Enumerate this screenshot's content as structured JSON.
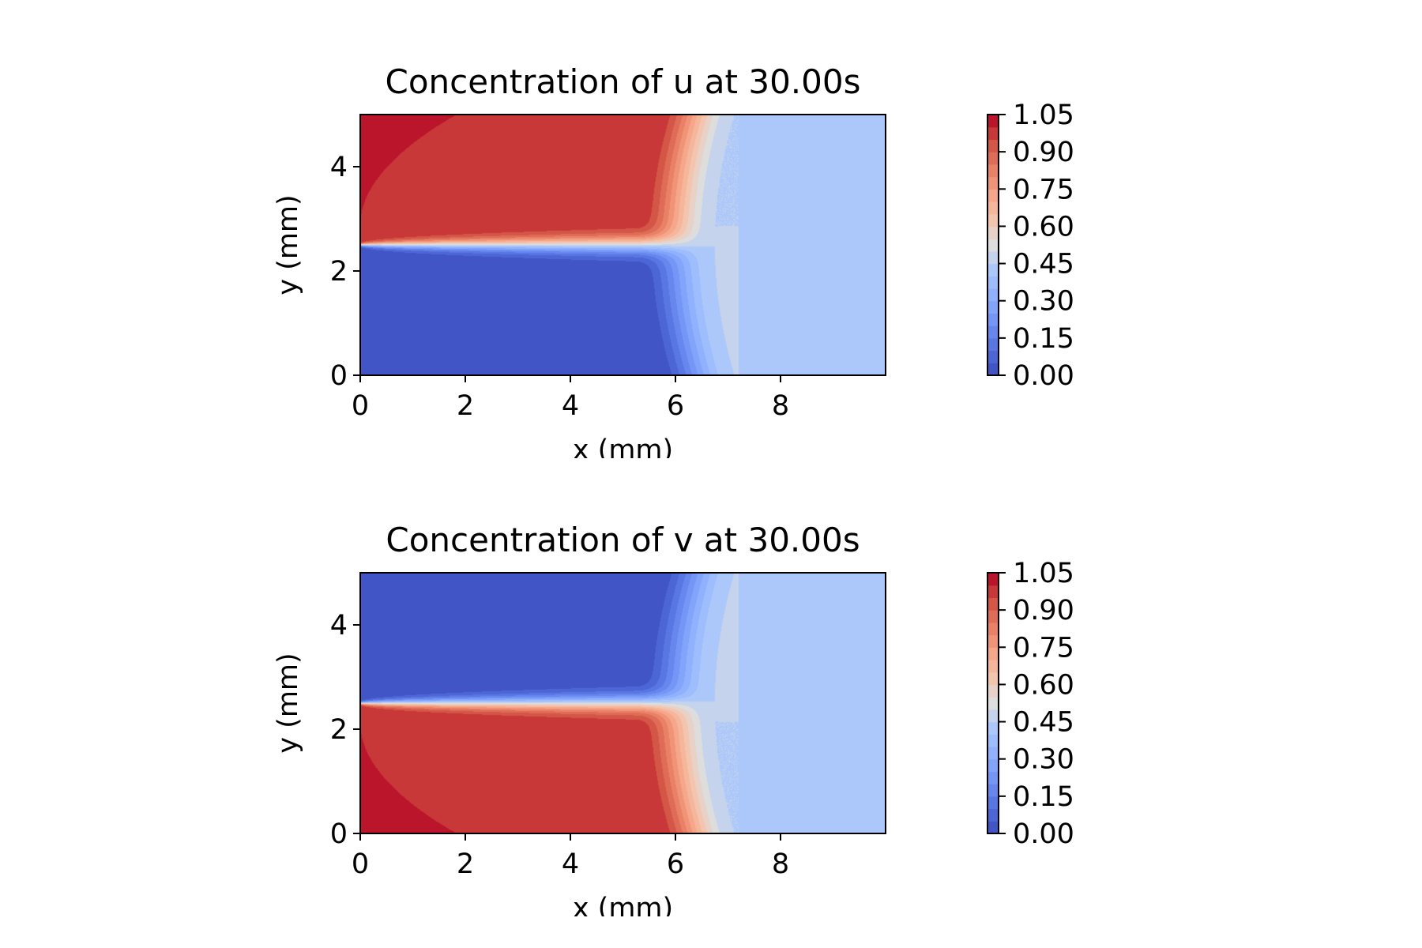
{
  "chart_data": [
    {
      "type": "contour",
      "title": "Concentration of u at 30.00s",
      "xlabel": "x (mm)",
      "ylabel": "y (mm)",
      "xlim": [
        0,
        10
      ],
      "ylim": [
        0,
        5
      ],
      "x_ticks": [
        "0",
        "2",
        "4",
        "6",
        "8"
      ],
      "y_ticks": [
        "0",
        "2",
        "4"
      ],
      "colormap": "coolwarm",
      "levels": [
        0.0,
        0.05,
        0.1,
        0.15,
        0.2,
        0.25,
        0.3,
        0.35,
        0.4,
        0.45,
        0.5,
        0.55,
        0.6,
        0.65,
        0.7,
        0.75,
        0.8,
        0.85,
        0.9,
        0.95,
        1.0,
        1.05
      ],
      "colorbar_ticks": [
        "0.00",
        "0.15",
        "0.30",
        "0.45",
        "0.60",
        "0.75",
        "0.90",
        "1.05"
      ],
      "field": {
        "high_region": "upper",
        "interface_y": 2.5,
        "front_x_start": 5.25,
        "front_x_end": 6.75,
        "mixed_value": 0.45,
        "plateau_high": 1.0,
        "plateau_low": 0.0
      }
    },
    {
      "type": "contour",
      "title": "Concentration of v at 30.00s",
      "xlabel": "x (mm)",
      "ylabel": "y (mm)",
      "xlim": [
        0,
        10
      ],
      "ylim": [
        0,
        5
      ],
      "x_ticks": [
        "0",
        "2",
        "4",
        "6",
        "8"
      ],
      "y_ticks": [
        "0",
        "2",
        "4"
      ],
      "colormap": "coolwarm",
      "levels": [
        0.0,
        0.05,
        0.1,
        0.15,
        0.2,
        0.25,
        0.3,
        0.35,
        0.4,
        0.45,
        0.5,
        0.55,
        0.6,
        0.65,
        0.7,
        0.75,
        0.8,
        0.85,
        0.9,
        0.95,
        1.0,
        1.05
      ],
      "colorbar_ticks": [
        "0.00",
        "0.15",
        "0.30",
        "0.45",
        "0.60",
        "0.75",
        "0.90",
        "1.05"
      ],
      "field": {
        "high_region": "lower",
        "interface_y": 2.5,
        "front_x_start": 5.25,
        "front_x_end": 6.75,
        "mixed_value": 0.45,
        "plateau_high": 1.0,
        "plateau_low": 0.0
      }
    }
  ]
}
